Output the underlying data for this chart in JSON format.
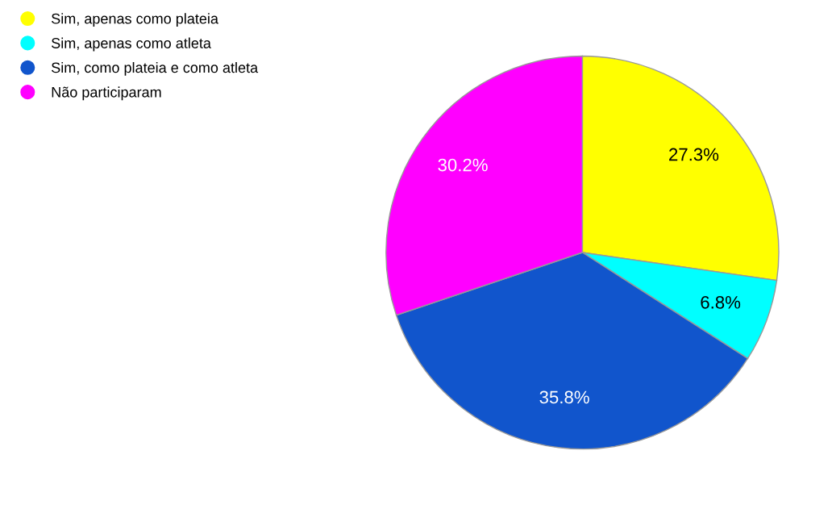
{
  "chart_data": {
    "type": "pie",
    "categories": [
      "Sim, apenas como plateia",
      "Sim, apenas como atleta",
      "Sim, como plateia e como atleta",
      "Não participaram"
    ],
    "values": [
      27.3,
      6.8,
      35.8,
      30.2
    ],
    "colors": [
      "#ffff00",
      "#00ffff",
      "#1155cc",
      "#ff00ff"
    ],
    "value_labels": [
      "27.3%",
      "6.8%",
      "35.8%",
      "30.2%"
    ],
    "legend": "top left"
  }
}
